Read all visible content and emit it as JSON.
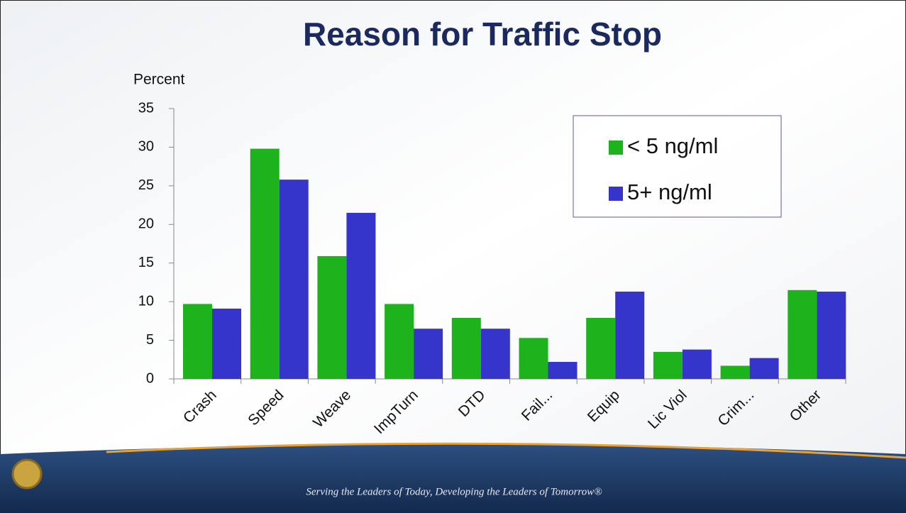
{
  "chart_data": {
    "type": "bar",
    "title": "Reason for Traffic Stop",
    "y_label": "Percent",
    "categories": [
      "Crash",
      "Speed",
      "Weave",
      "ImpTurn",
      "DTD",
      "Fail...",
      "Equip",
      "Lic Viol",
      "Crim...",
      "Other"
    ],
    "series": [
      {
        "name": "< 5 ng/ml",
        "color": "#1db31d",
        "values": [
          9.7,
          29.8,
          15.9,
          9.7,
          7.9,
          5.3,
          7.9,
          3.5,
          1.7,
          11.5
        ]
      },
      {
        "name": "5+ ng/ml",
        "color": "#3535cc",
        "values": [
          9.1,
          25.8,
          21.5,
          6.5,
          6.5,
          2.2,
          11.3,
          3.8,
          2.7,
          11.3
        ]
      }
    ],
    "ylim": [
      0,
      35
    ],
    "yticks": [
      0,
      5,
      10,
      15,
      20,
      25,
      30,
      35
    ],
    "grid": false,
    "legend": "upper right"
  },
  "footer": {
    "tagline": "Serving the Leaders of Today, Developing the Leaders of Tomorrow®"
  }
}
